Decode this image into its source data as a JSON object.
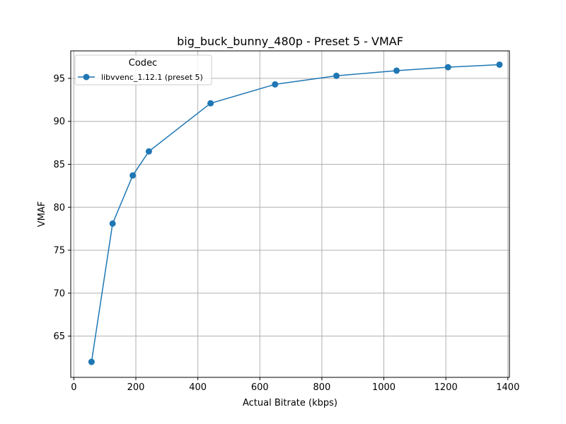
{
  "chart_data": {
    "type": "line",
    "title": "big_buck_bunny_480p - Preset 5 - VMAF",
    "xlabel": "Actual Bitrate (kbps)",
    "ylabel": "VMAF",
    "xlim": [
      -10,
      1405
    ],
    "ylim": [
      60.2,
      98.2
    ],
    "xticks": [
      0,
      200,
      400,
      600,
      800,
      1000,
      1200,
      1400
    ],
    "yticks": [
      65,
      70,
      75,
      80,
      85,
      90,
      95
    ],
    "grid": true,
    "legend": {
      "title": "Codec",
      "placement": "top-left"
    },
    "series": [
      {
        "name": "libvvenc_1.12.1 (preset 5)",
        "color": "#1f77b4",
        "x": [
          57,
          125,
          190,
          242,
          441,
          649,
          847,
          1041,
          1207,
          1373
        ],
        "y": [
          62.0,
          78.1,
          83.7,
          86.5,
          92.1,
          94.3,
          95.3,
          95.9,
          96.3,
          96.6
        ]
      }
    ]
  }
}
